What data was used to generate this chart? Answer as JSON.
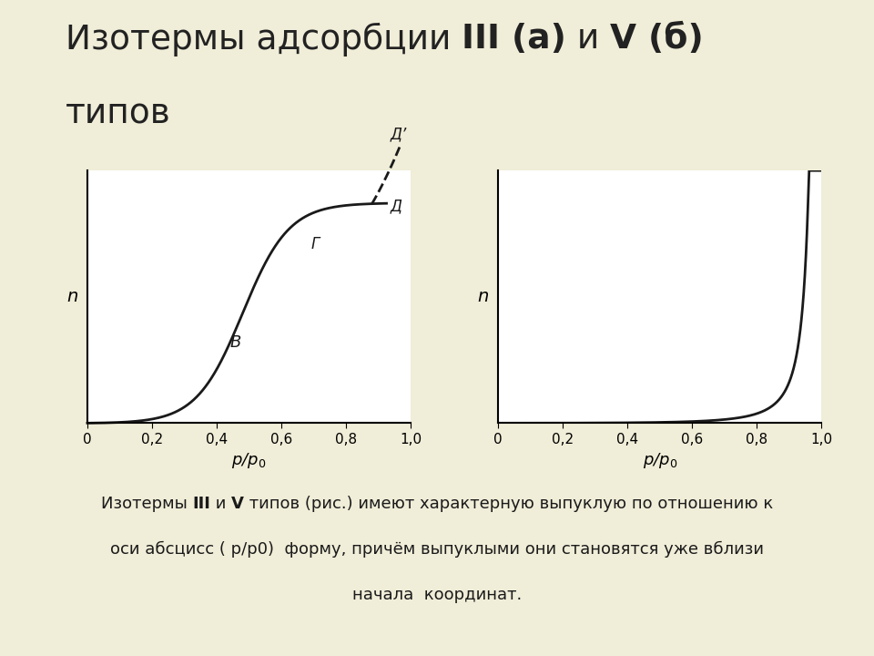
{
  "bg_color": "#f0edd8",
  "title_normal": "Изотермы адсорбции ",
  "title_bold1": "III (а)",
  "title_mid": " и ",
  "title_bold2": "V (б)",
  "title_line2": "типов",
  "xlabel": "p/p₀",
  "ylabel": "n",
  "xticks": [
    0,
    0.2,
    0.4,
    0.6,
    0.8,
    1.0
  ],
  "xtick_labels": [
    "0",
    "0,2",
    "0,4",
    "0,6",
    "0,8",
    "1,0"
  ],
  "line_color": "#1a1a1a",
  "label_B": "В",
  "label_G": "Г",
  "label_D": "Д",
  "label_Dprime": "Д’",
  "footer_line1_pre": "Изотермы ",
  "footer_line1_bold1": "III",
  "footer_line1_mid": " и ",
  "footer_line1_bold2": "V",
  "footer_line1_post": " типов (рис.) имеют характерную выпуклую по отношению к",
  "footer_line2": "оси абсцисс ( р/р0)  форму, причём выпуклыми они становятся уже вблизи",
  "footer_line3": "начала  координат.",
  "sep_left_color": "#555555",
  "sep_right_color": "#999999"
}
